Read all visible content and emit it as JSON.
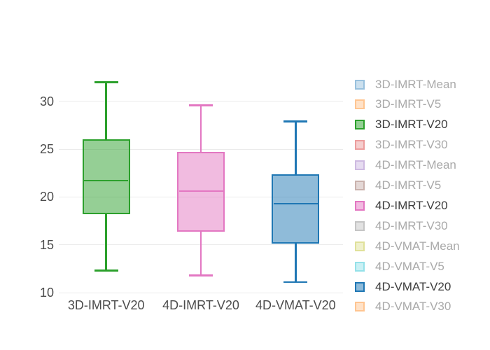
{
  "chart_data": {
    "type": "box",
    "categories": [
      "3D-IMRT-V20",
      "4D-IMRT-V20",
      "4D-VMAT-V20"
    ],
    "series": [
      {
        "name": "3D-IMRT-V20",
        "color": "#2ca02c",
        "low": 12.3,
        "q1": 18.2,
        "median": 21.7,
        "q3": 26.0,
        "high": 32.0
      },
      {
        "name": "4D-IMRT-V20",
        "color": "#e377c2",
        "low": 11.8,
        "q1": 16.4,
        "median": 20.6,
        "q3": 24.7,
        "high": 29.6
      },
      {
        "name": "4D-VMAT-V20",
        "color": "#1f77b4",
        "low": 11.1,
        "q1": 15.1,
        "median": 19.3,
        "q3": 22.4,
        "high": 27.9
      }
    ],
    "yaxis": {
      "tick_values": [
        10,
        15,
        20,
        25,
        30
      ],
      "range": [
        10,
        34.16
      ],
      "grid": true
    },
    "xlabel": "",
    "ylabel": "",
    "legend_position": "right",
    "legend": {
      "items": [
        {
          "label": "3D-IMRT-Mean",
          "color": "#1f77b4",
          "active": false
        },
        {
          "label": "3D-IMRT-V5",
          "color": "#ff7f0e",
          "active": false
        },
        {
          "label": "3D-IMRT-V20",
          "color": "#2ca02c",
          "active": true
        },
        {
          "label": "3D-IMRT-V30",
          "color": "#d62728",
          "active": false
        },
        {
          "label": "4D-IMRT-Mean",
          "color": "#9467bd",
          "active": false
        },
        {
          "label": "4D-IMRT-V5",
          "color": "#8c564b",
          "active": false
        },
        {
          "label": "4D-IMRT-V20",
          "color": "#e377c2",
          "active": true
        },
        {
          "label": "4D-IMRT-V30",
          "color": "#7f7f7f",
          "active": false
        },
        {
          "label": "4D-VMAT-Mean",
          "color": "#bcbd22",
          "active": false
        },
        {
          "label": "4D-VMAT-V5",
          "color": "#17becf",
          "active": false
        },
        {
          "label": "4D-VMAT-V20",
          "color": "#1f77b4",
          "active": true
        },
        {
          "label": "4D-VMAT-V30",
          "color": "#ff7f0e",
          "active": false
        }
      ]
    },
    "colors": {
      "background": "#ffffff",
      "grid": "#ebebeb",
      "tick_text": "#4c4c4c",
      "legend_active_text": "#3d3d3d",
      "legend_inactive_text": "#a9a9a9"
    }
  }
}
